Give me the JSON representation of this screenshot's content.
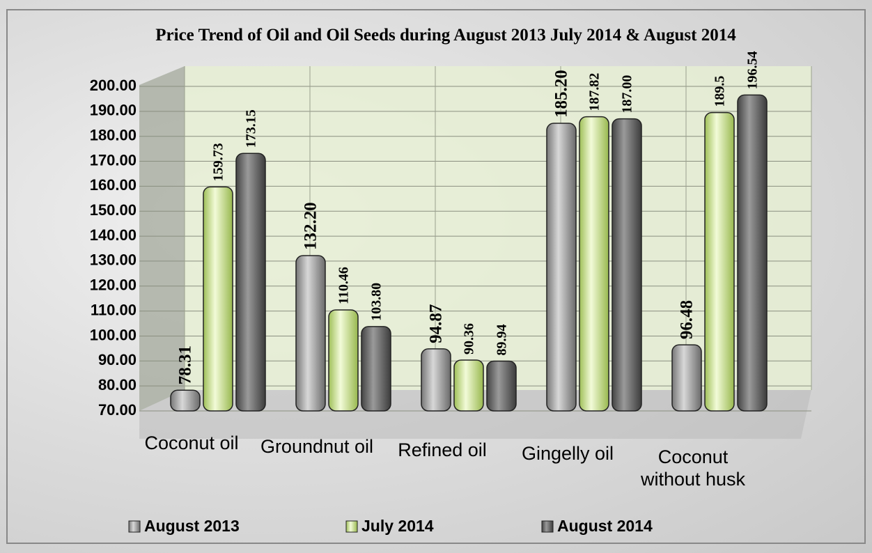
{
  "chart_data": {
    "type": "bar",
    "title": "Price Trend of Oil and Oil Seeds during August 2013 July 2014 & August 2014",
    "categories": [
      "Coconut oil",
      "Groundnut oil",
      "Refined oil",
      "Gingelly oil",
      "Coconut without husk"
    ],
    "series": [
      {
        "name": "August 2013",
        "color": "#9c9c9c",
        "values": [
          78.31,
          132.2,
          94.87,
          185.2,
          96.48
        ],
        "value_labels": [
          "78.31",
          "132.20",
          "94.87",
          "185.20",
          "96.48"
        ]
      },
      {
        "name": "July 2014",
        "color": "#d3e99c",
        "values": [
          159.73,
          110.46,
          90.36,
          187.82,
          189.5
        ],
        "value_labels": [
          "159.73",
          "110.46",
          "90.36",
          "187.82",
          "189.5"
        ]
      },
      {
        "name": "August 2014",
        "color": "#6a6a6a",
        "values": [
          173.15,
          103.8,
          89.94,
          187.0,
          196.54
        ],
        "value_labels": [
          "173.15",
          "103.80",
          "89.94",
          "187.00",
          "196.54"
        ]
      }
    ],
    "ylim": [
      70,
      200
    ],
    "yticks": [
      {
        "value": 70,
        "label": "70.00"
      },
      {
        "value": 80,
        "label": "80.00"
      },
      {
        "value": 90,
        "label": "90.00"
      },
      {
        "value": 100,
        "label": "100.00"
      },
      {
        "value": 110,
        "label": "110.00"
      },
      {
        "value": 120,
        "label": "120.00"
      },
      {
        "value": 130,
        "label": "130.00"
      },
      {
        "value": 140,
        "label": "140.00"
      },
      {
        "value": 150,
        "label": "150.00"
      },
      {
        "value": 160,
        "label": "160.00"
      },
      {
        "value": 170,
        "label": "170.00"
      },
      {
        "value": 180,
        "label": "180.00"
      },
      {
        "value": 190,
        "label": "190.00"
      },
      {
        "value": 200,
        "label": "200.00"
      }
    ],
    "grid": true,
    "legend": "bottom"
  }
}
